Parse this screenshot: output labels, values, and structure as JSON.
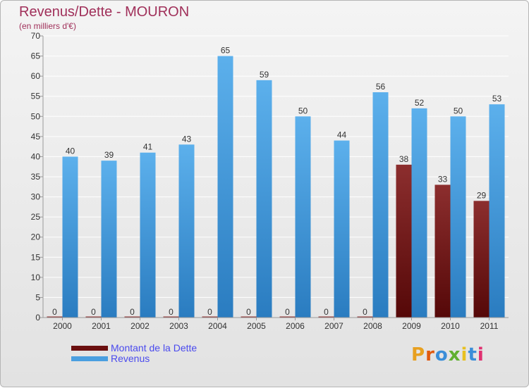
{
  "header": {
    "title": "Revenus/Dette - MOURON",
    "subtitle": "(en milliers d'€)"
  },
  "legend": {
    "items": [
      {
        "label": "Montant de la Dette",
        "color": "#6b0f0f"
      },
      {
        "label": "Revenus",
        "color": "#4a9fe0"
      }
    ]
  },
  "logo": {
    "text": "Proxiti",
    "colors": [
      "#e8a020",
      "#e05a10",
      "#3a8ed8",
      "#60b030",
      "#e8c020",
      "#3a8ed8",
      "#e03070"
    ]
  },
  "colors": {
    "revenus": "#56a8e8",
    "revenus_dark": "#2a7cc0",
    "dette": "#8a2a2a",
    "dette_dark": "#5a0a0a",
    "axis": "#9a9a9a",
    "grid": "#ffffff",
    "label": "#333333"
  },
  "chart_data": {
    "type": "bar",
    "categories": [
      "2000",
      "2001",
      "2002",
      "2003",
      "2004",
      "2005",
      "2006",
      "2007",
      "2008",
      "2009",
      "2010",
      "2011"
    ],
    "series": [
      {
        "name": "Montant de la Dette",
        "values": [
          0,
          0,
          0,
          0,
          0,
          0,
          0,
          0,
          0,
          38,
          33,
          29
        ]
      },
      {
        "name": "Revenus",
        "values": [
          40,
          39,
          41,
          43,
          65,
          59,
          50,
          44,
          56,
          52,
          50,
          53
        ]
      }
    ],
    "title": "Revenus/Dette - MOURON",
    "ylabel": "(en milliers d'€)",
    "ylim": [
      0,
      70
    ],
    "yticks": [
      0,
      5,
      10,
      15,
      20,
      25,
      30,
      35,
      40,
      45,
      50,
      55,
      60,
      65,
      70
    ],
    "grid": true,
    "legend_position": "bottom-left"
  }
}
